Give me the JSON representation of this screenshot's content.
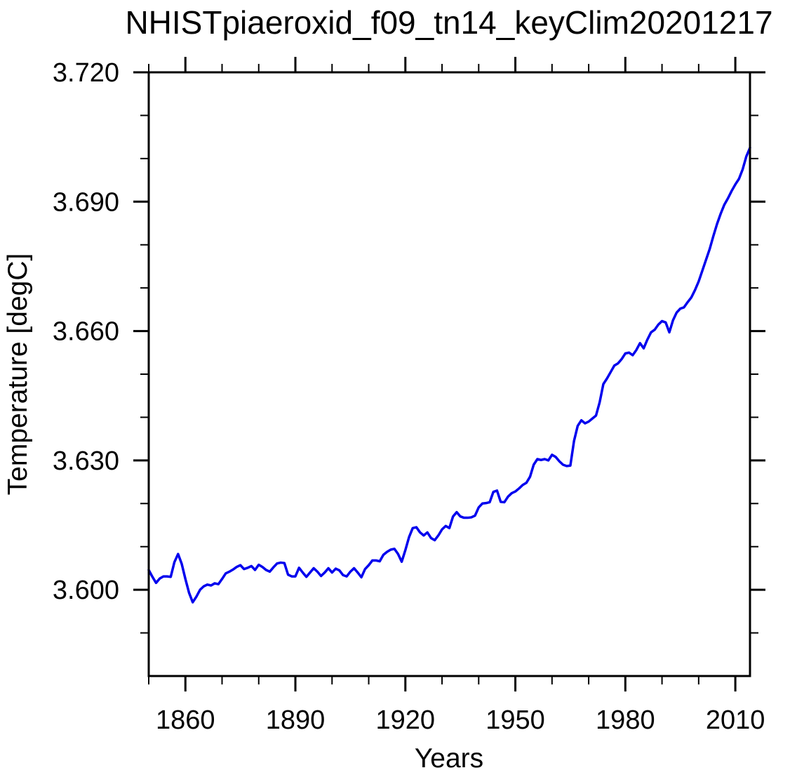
{
  "page": {
    "background": "#ffffff",
    "kind": "xy-line-plot"
  },
  "chart_data": {
    "type": "line",
    "title": "NHISTpiaeroxid_f09_tn14_keyClim20201217",
    "xlabel": "Years",
    "ylabel": "Temperature [degC]",
    "grid": false,
    "legend": null,
    "frame": "box-with-outward-ticks",
    "line_color": "#0000EE",
    "frame_color": "#000000",
    "xlim": [
      1850,
      2014
    ],
    "ylim": [
      3.58,
      3.72
    ],
    "x_ticks_major": [
      1860,
      1890,
      1920,
      1950,
      1980,
      2010
    ],
    "x_tick_labels": [
      "1860",
      "1890",
      "1920",
      "1950",
      "1980",
      "2010"
    ],
    "x_ticks_minor_interval": 10,
    "y_ticks_major": [
      3.6,
      3.63,
      3.66,
      3.69,
      3.72
    ],
    "y_tick_labels": [
      "3.600",
      "3.630",
      "3.660",
      "3.690",
      "3.720"
    ],
    "y_ticks_minor_interval": 0.01,
    "x_start": 1850,
    "x_step": 1,
    "x_end": 2014,
    "values": [
      3.6046,
      3.603,
      3.6016,
      3.6026,
      3.6031,
      3.6031,
      3.603,
      3.6064,
      3.6083,
      3.606,
      3.6025,
      3.5993,
      3.5971,
      3.5984,
      3.6,
      3.6008,
      3.6012,
      3.601,
      3.6015,
      3.6013,
      3.6025,
      3.6038,
      3.6042,
      3.6047,
      3.6053,
      3.6057,
      3.6048,
      3.6051,
      3.6055,
      3.6046,
      3.6058,
      3.6053,
      3.6046,
      3.6042,
      3.6052,
      3.6061,
      3.6063,
      3.6062,
      3.6035,
      3.6031,
      3.6031,
      3.6051,
      3.604,
      3.603,
      3.604,
      3.605,
      3.6042,
      3.6032,
      3.604,
      3.605,
      3.604,
      3.6049,
      3.6045,
      3.6034,
      3.6031,
      3.6042,
      3.605,
      3.604,
      3.6029,
      3.6048,
      3.6057,
      3.6068,
      3.6068,
      3.6066,
      3.6081,
      3.6088,
      3.6093,
      3.6095,
      3.6083,
      3.6065,
      3.6092,
      3.6122,
      3.6143,
      3.6145,
      3.6133,
      3.6126,
      3.6133,
      3.612,
      3.6115,
      3.6126,
      3.614,
      3.6148,
      3.6143,
      3.617,
      3.618,
      3.617,
      3.6167,
      3.6167,
      3.6168,
      3.6172,
      3.6191,
      3.62,
      3.6201,
      3.6203,
      3.6227,
      3.623,
      3.6204,
      3.6203,
      3.6216,
      3.6224,
      3.6228,
      3.6235,
      3.6243,
      3.6248,
      3.6262,
      3.629,
      3.6303,
      3.6301,
      3.6303,
      3.63,
      3.6313,
      3.6308,
      3.6298,
      3.629,
      3.6287,
      3.6288,
      3.6345,
      3.638,
      3.6393,
      3.6386,
      3.639,
      3.6397,
      3.6404,
      3.6435,
      3.6477,
      3.649,
      3.6505,
      3.652,
      3.6525,
      3.6535,
      3.6548,
      3.655,
      3.6544,
      3.6556,
      3.6572,
      3.656,
      3.658,
      3.6597,
      3.6603,
      3.6615,
      3.6623,
      3.662,
      3.6597,
      3.6625,
      3.6643,
      3.6652,
      3.6655,
      3.6667,
      3.6678,
      3.6695,
      3.6715,
      3.674,
      3.6765,
      3.679,
      3.682,
      3.6848,
      3.6872,
      3.6893,
      3.6908,
      3.6925,
      3.694,
      3.6953,
      3.6975,
      3.7005,
      3.7025
    ]
  }
}
